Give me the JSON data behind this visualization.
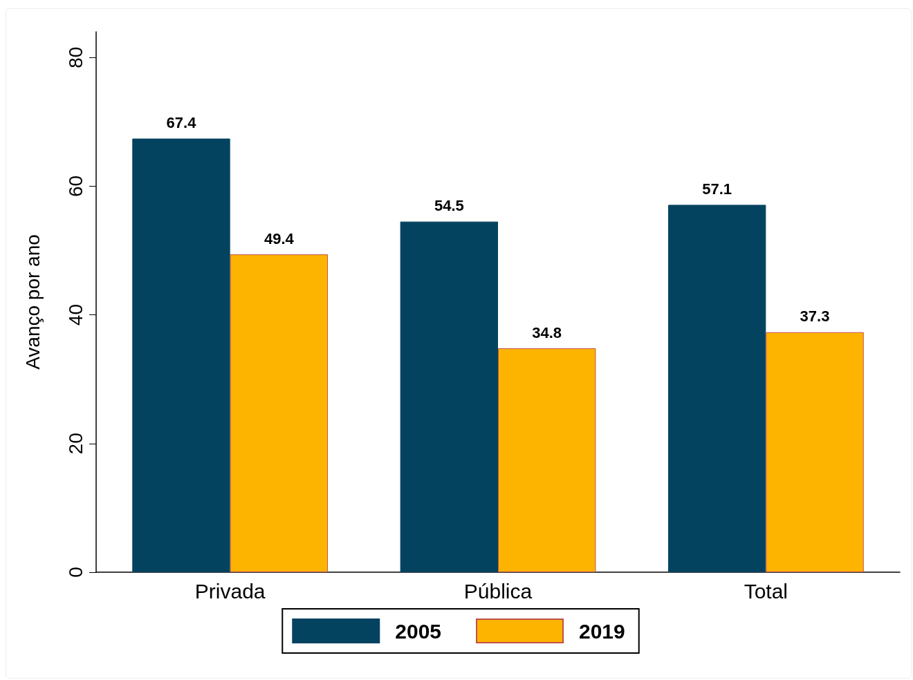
{
  "chart_data": {
    "type": "bar",
    "ylabel": "Avanço por ano",
    "categories": [
      "Privada",
      "Pública",
      "Total"
    ],
    "series": [
      {
        "name": "2005",
        "color": "#03435f",
        "values": [
          67.4,
          54.5,
          57.1
        ]
      },
      {
        "name": "2019",
        "color": "#fdb400",
        "values": [
          49.4,
          34.8,
          37.3
        ]
      }
    ],
    "ylim": [
      0,
      84
    ],
    "yticks": [
      0,
      20,
      40,
      60,
      80
    ],
    "grid": false,
    "legend": "bottom",
    "data_labels": true
  }
}
